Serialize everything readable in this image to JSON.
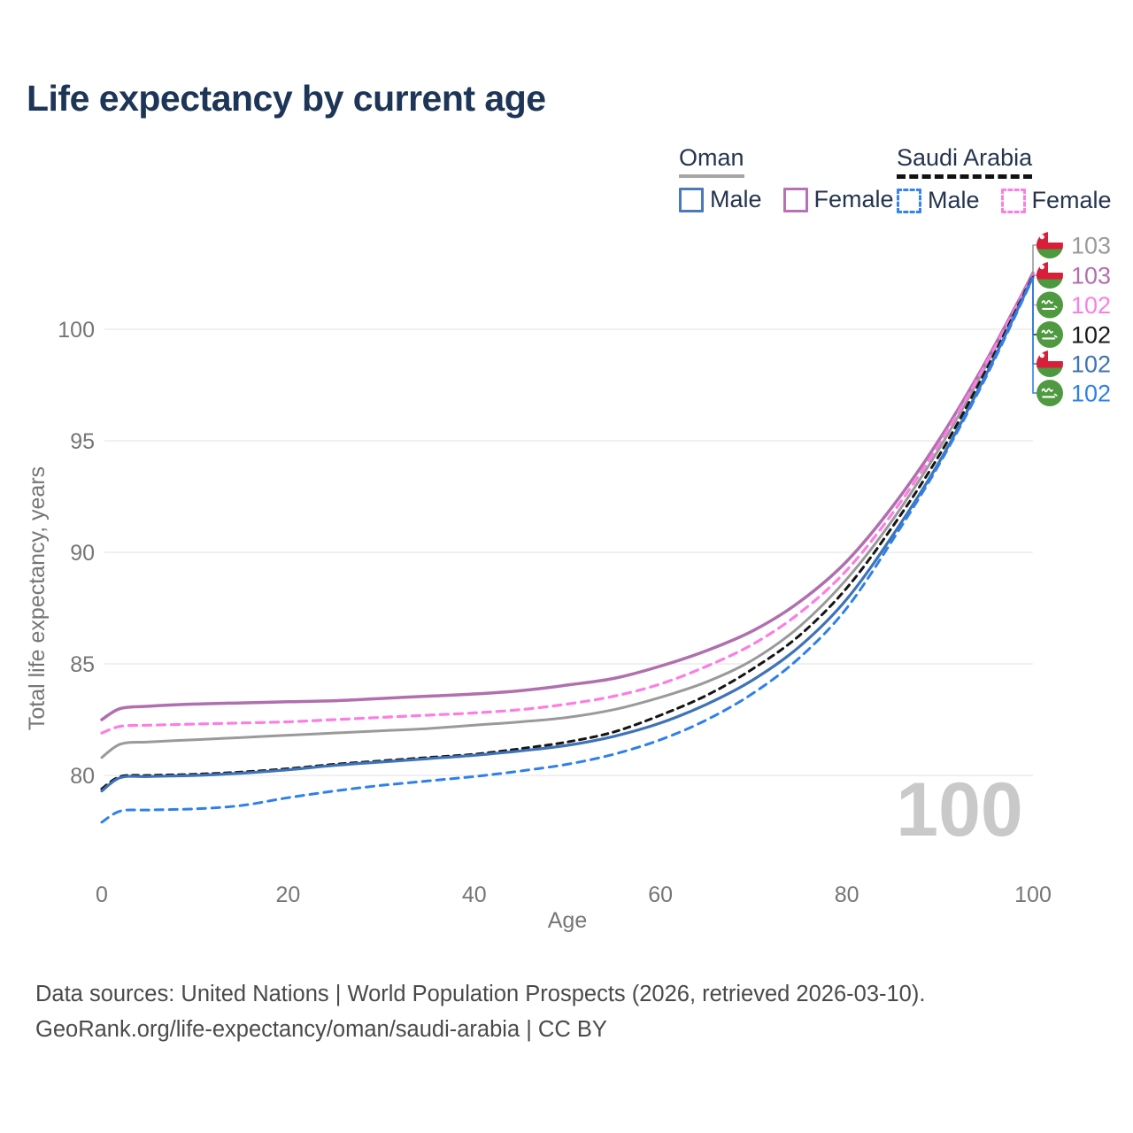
{
  "title": "Life expectancy by current age",
  "legend": {
    "oman": {
      "name": "Oman",
      "male": {
        "label": "Male",
        "color": "#4a79bd",
        "dashed": false
      },
      "female": {
        "label": "Female",
        "color": "#b871b4",
        "dashed": false
      }
    },
    "saudi": {
      "name": "Saudi Arabia",
      "male": {
        "label": "Male",
        "color": "#3384f0",
        "dashed": true
      },
      "female": {
        "label": "Female",
        "color": "#fc7ee2",
        "dashed": true
      }
    }
  },
  "watermark": "100",
  "y_axis": {
    "title": "Total life expectancy, years",
    "ticks": [
      80,
      85,
      90,
      95,
      100
    ]
  },
  "x_axis": {
    "title": "Age",
    "ticks": [
      0,
      20,
      40,
      60,
      80,
      100
    ]
  },
  "end_labels": [
    {
      "country": "oman",
      "value": "103",
      "color": "#9a9a9a"
    },
    {
      "country": "oman",
      "value": "103",
      "color": "#b06fae"
    },
    {
      "country": "saudi",
      "value": "102",
      "color": "#fc7ee2"
    },
    {
      "country": "saudi",
      "value": "102",
      "color": "#1a1a1a"
    },
    {
      "country": "oman",
      "value": "102",
      "color": "#3e73b7"
    },
    {
      "country": "saudi",
      "value": "102",
      "color": "#2f80ea"
    }
  ],
  "footer": {
    "line1": "Data sources: United Nations | World Population Prospects (2026, retrieved 2026-03-10).",
    "line2": "GeoRank.org/life-expectancy/oman/saudi-arabia | CC BY"
  },
  "chart_data": {
    "type": "line",
    "title": "Life expectancy by current age",
    "xlabel": "Age",
    "ylabel": "Total life expectancy, years",
    "xlim": [
      0,
      100
    ],
    "ylim": [
      76.5,
      103.5
    ],
    "x_ticks": [
      0,
      20,
      40,
      60,
      80,
      100
    ],
    "y_ticks": [
      80,
      85,
      90,
      95,
      100
    ],
    "grid": "horizontal",
    "legend_position": "top-right",
    "ages": [
      0,
      2,
      5,
      10,
      15,
      20,
      25,
      30,
      35,
      40,
      45,
      50,
      55,
      60,
      65,
      70,
      75,
      80,
      85,
      90,
      95,
      100
    ],
    "series": [
      {
        "name": "Oman — all",
        "country": "Oman",
        "sex": "All",
        "style": "solid",
        "color": "#9a9a9a",
        "width": 3,
        "dash": null,
        "end_label": 103,
        "values": [
          80.8,
          81.4,
          81.5,
          81.6,
          81.7,
          81.8,
          81.9,
          82.0,
          82.1,
          82.25,
          82.4,
          82.6,
          82.95,
          83.5,
          84.2,
          85.2,
          86.7,
          88.8,
          91.5,
          94.7,
          98.4,
          102.55
        ]
      },
      {
        "name": "Oman — female",
        "country": "Oman",
        "sex": "Female",
        "style": "solid",
        "color": "#b06fae",
        "width": 3.5,
        "dash": null,
        "end_label": 103,
        "values": [
          82.5,
          83.0,
          83.1,
          83.2,
          83.25,
          83.3,
          83.35,
          83.45,
          83.55,
          83.65,
          83.8,
          84.05,
          84.35,
          84.9,
          85.6,
          86.5,
          87.8,
          89.6,
          92.1,
          95.1,
          98.6,
          102.5
        ]
      },
      {
        "name": "Saudi Arabia — female",
        "country": "Saudi Arabia",
        "sex": "Female",
        "style": "dashed",
        "color": "#fc7ee2",
        "width": 3.2,
        "dash": "9 7",
        "end_label": 102,
        "values": [
          81.9,
          82.2,
          82.25,
          82.3,
          82.35,
          82.4,
          82.5,
          82.6,
          82.7,
          82.8,
          82.95,
          83.2,
          83.55,
          84.1,
          84.9,
          85.9,
          87.3,
          89.2,
          91.8,
          94.9,
          98.5,
          102.45
        ]
      },
      {
        "name": "Saudi Arabia — all",
        "country": "Saudi Arabia",
        "sex": "All",
        "style": "dashed",
        "color": "#151515",
        "width": 3,
        "dash": "7 6",
        "end_label": 102,
        "values": [
          79.4,
          79.95,
          80.0,
          80.05,
          80.15,
          80.3,
          80.5,
          80.65,
          80.8,
          80.95,
          81.2,
          81.5,
          81.95,
          82.7,
          83.6,
          84.8,
          86.3,
          88.4,
          91.2,
          94.4,
          98.2,
          102.4
        ]
      },
      {
        "name": "Oman — male",
        "country": "Oman",
        "sex": "Male",
        "style": "solid",
        "color": "#3e73b7",
        "width": 3.2,
        "dash": null,
        "end_label": 102,
        "values": [
          79.3,
          79.9,
          79.95,
          80.0,
          80.1,
          80.25,
          80.45,
          80.6,
          80.75,
          80.9,
          81.1,
          81.35,
          81.75,
          82.35,
          83.2,
          84.3,
          85.8,
          87.9,
          90.8,
          94.1,
          98.0,
          102.35
        ]
      },
      {
        "name": "Saudi Arabia — male",
        "country": "Saudi Arabia",
        "sex": "Male",
        "style": "dashed",
        "color": "#2f80ea",
        "width": 3,
        "dash": "9 7",
        "end_label": 102,
        "values": [
          77.9,
          78.4,
          78.45,
          78.5,
          78.65,
          79.0,
          79.3,
          79.55,
          79.75,
          79.95,
          80.2,
          80.5,
          80.95,
          81.6,
          82.5,
          83.7,
          85.3,
          87.5,
          90.6,
          94.0,
          97.9,
          102.3
        ]
      }
    ]
  }
}
